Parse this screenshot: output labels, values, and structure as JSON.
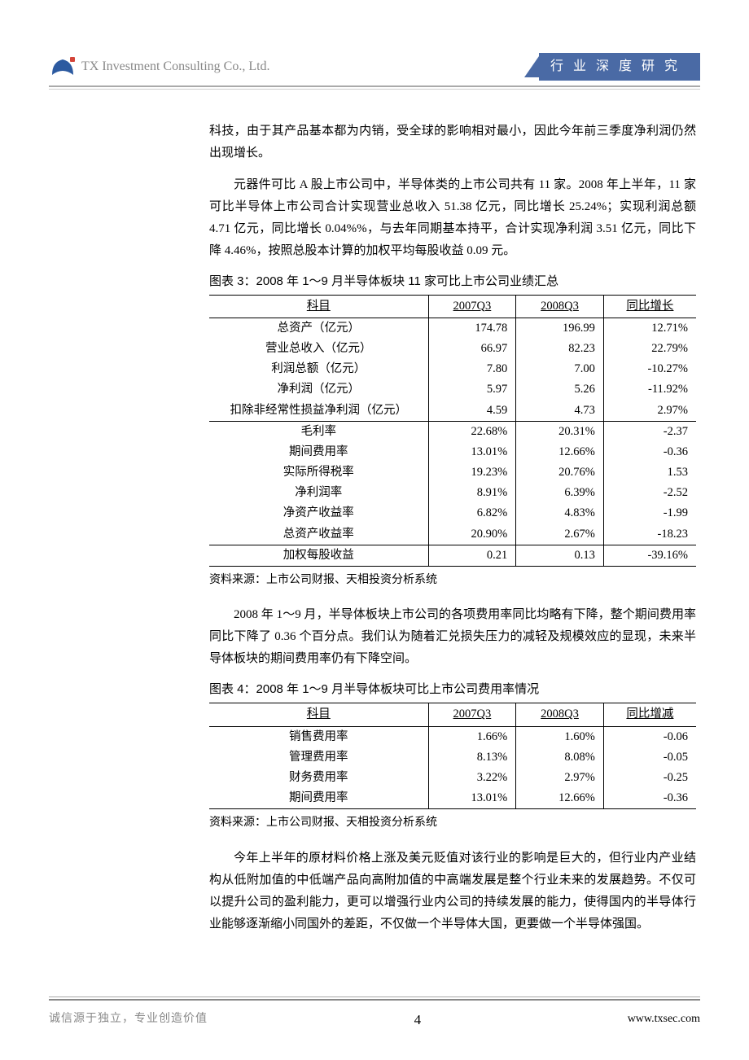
{
  "header": {
    "company": "TX Investment Consulting Co., Ltd.",
    "category": "行 业 深 度 研 究"
  },
  "paragraphs": {
    "p1": "科技，由于其产品基本都为内销，受全球的影响相对最小，因此今年前三季度净利润仍然出现增长。",
    "p2": "元器件可比 A 股上市公司中，半导体类的上市公司共有 11 家。2008 年上半年，11 家可比半导体上市公司合计实现营业总收入 51.38 亿元，同比增长 25.24%；实现利润总额 4.71 亿元，同比增长 0.04%%，与去年同期基本持平，合计实现净利润 3.51 亿元，同比下降 4.46%，按照总股本计算的加权平均每股收益 0.09 元。",
    "p3": "2008 年 1～9 月，半导体板块上市公司的各项费用率同比均略有下降，整个期间费用率同比下降了 0.36 个百分点。我们认为随着汇兑损失压力的减轻及规模效应的显现，未来半导体板块的期间费用率仍有下降空间。",
    "p4": "今年上半年的原材料价格上涨及美元贬值对该行业的影响是巨大的，但行业内产业结构从低附加值的中低端产品向高附加值的中高端发展是整个行业未来的发展趋势。不仅可以提升公司的盈利能力，更可以增强行业内公司的持续发展的能力，使得国内的半导体行业能够逐渐缩小同国外的差距，不仅做一个半导体大国，更要做一个半导体强国。"
  },
  "table3": {
    "title": "图表 3：2008 年 1～9 月半导体板块 11 家可比上市公司业绩汇总",
    "headers": [
      "科目",
      "2007Q3",
      "2008Q3",
      "同比增长"
    ],
    "group1": [
      [
        "总资产（亿元）",
        "174.78",
        "196.99",
        "12.71%"
      ],
      [
        "营业总收入（亿元）",
        "66.97",
        "82.23",
        "22.79%"
      ],
      [
        "利润总额（亿元）",
        "7.80",
        "7.00",
        "-10.27%"
      ],
      [
        "净利润（亿元）",
        "5.97",
        "5.26",
        "-11.92%"
      ],
      [
        "扣除非经常性损益净利润（亿元）",
        "4.59",
        "4.73",
        "2.97%"
      ]
    ],
    "group2": [
      [
        "毛利率",
        "22.68%",
        "20.31%",
        "-2.37"
      ],
      [
        "期间费用率",
        "13.01%",
        "12.66%",
        "-0.36"
      ],
      [
        "实际所得税率",
        "19.23%",
        "20.76%",
        "1.53"
      ],
      [
        "净利润率",
        "8.91%",
        "6.39%",
        "-2.52"
      ],
      [
        "净资产收益率",
        "6.82%",
        "4.83%",
        "-1.99"
      ],
      [
        "总资产收益率",
        "20.90%",
        "2.67%",
        "-18.23"
      ]
    ],
    "group3": [
      [
        "加权每股收益",
        "0.21",
        "0.13",
        "-39.16%"
      ]
    ],
    "source": "资料来源：上市公司财报、天相投资分析系统"
  },
  "table4": {
    "title": "图表 4：2008 年 1～9 月半导体板块可比上市公司费用率情况",
    "headers": [
      "科目",
      "2007Q3",
      "2008Q3",
      "同比增减"
    ],
    "rows": [
      [
        "销售费用率",
        "1.66%",
        "1.60%",
        "-0.06"
      ],
      [
        "管理费用率",
        "8.13%",
        "8.08%",
        "-0.05"
      ],
      [
        "财务费用率",
        "3.22%",
        "2.97%",
        "-0.25"
      ],
      [
        "期间费用率",
        "13.01%",
        "12.66%",
        "-0.36"
      ]
    ],
    "source": "资料来源：上市公司财报、天相投资分析系统"
  },
  "footer": {
    "left": "诚信源于独立，专业创造价值",
    "page": "4",
    "right": "www.txsec.com"
  },
  "colors": {
    "header_bar": "#4a6aa5",
    "text_gray": "#888"
  }
}
